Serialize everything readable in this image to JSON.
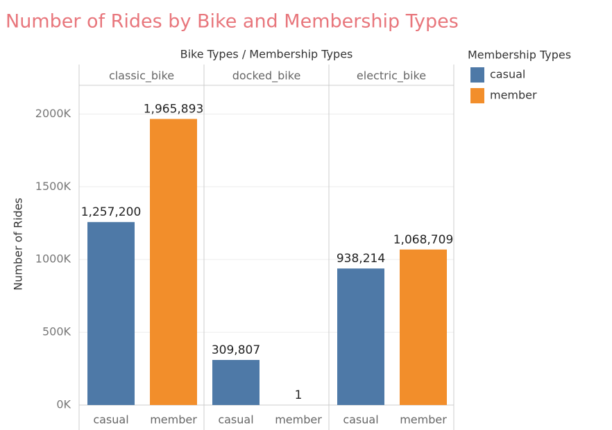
{
  "chart_data": {
    "type": "bar",
    "title": "Number of Rides by Bike and Membership Types",
    "x_label": "Bike Types  /  Membership Types",
    "y_label": "Number of Rides",
    "legend_title": "Membership Types",
    "categories": [
      "classic_bike",
      "docked_bike",
      "electric_bike"
    ],
    "series": [
      {
        "name": "casual",
        "color": "#4e79a7",
        "values": [
          1257200,
          309807,
          938214
        ],
        "value_labels": [
          "1,257,200",
          "309,807",
          "938,214"
        ]
      },
      {
        "name": "member",
        "color": "#f28e2b",
        "values": [
          1965893,
          1,
          1068709
        ],
        "value_labels": [
          "1,965,893",
          "1",
          "1,068,709"
        ]
      }
    ],
    "ylim": [
      0,
      2340000
    ],
    "yticks": [
      {
        "value": 0,
        "label": "0K"
      },
      {
        "value": 500000,
        "label": "500K"
      },
      {
        "value": 1000000,
        "label": "1000K"
      },
      {
        "value": 1500000,
        "label": "1500K"
      },
      {
        "value": 2000000,
        "label": "2000K"
      }
    ],
    "grid": true,
    "legend": "right"
  }
}
